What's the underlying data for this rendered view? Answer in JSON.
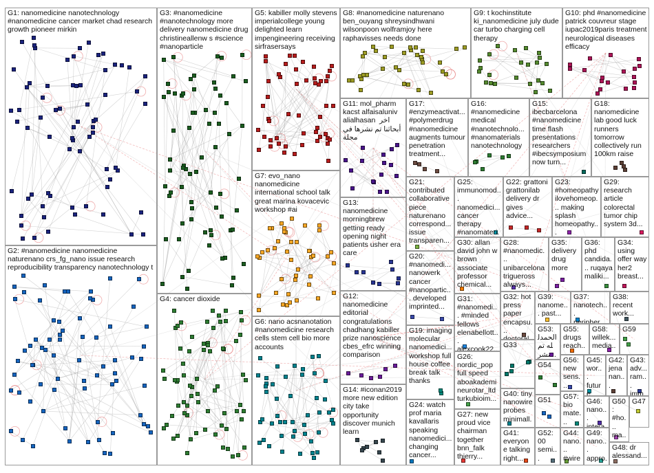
{
  "groups": [
    {
      "id": "G1",
      "label": "G1: nanomedicine nanotechnology #nanomedicine cancer market chad research growth pioneer mirkin",
      "color": "#1a237e"
    },
    {
      "id": "G2",
      "label": "G2: #nanomedicine nanomedicine naturenano crs_fg_nano issue research reproducibility transparency nanotechnology t",
      "color": "#1565c0"
    },
    {
      "id": "G3",
      "label": "G3: #nanomedicine #nanotechnology more delivery nanomedicine drug christineallenw s #science #nanoparticle",
      "color": "#1b5e20"
    },
    {
      "id": "G4",
      "label": "G4: cancer dioxide",
      "color": "#2e7d32"
    },
    {
      "id": "G5",
      "label": "G5: kabiller molly stevens imperialcollege young delighted learn impengineering receiving sirfrasersays",
      "color": "#b71c1c"
    },
    {
      "id": "G6",
      "label": "G6: nano acsnanotation #nanomedicine research cells stem cell bio more accounts",
      "color": "#00838f"
    },
    {
      "id": "G7",
      "label": "G7: evo_nano nanomedicine international school talk great marina kovacevic workshop #ai",
      "color": "#f9a825"
    },
    {
      "id": "G8",
      "label": "G8: #nanomedicine naturenano ben_ouyang shreysindhwani wilsonpoon wolframjoy here raphavisses needs done",
      "color": "#9e9d24"
    },
    {
      "id": "G9",
      "label": "G9: t kochinstitute ki_nanomedicine july dude car turbo charging cell therapy",
      "color": "#558b2f"
    },
    {
      "id": "G10",
      "label": "G10: phd #nanomedicine patrick couvreur stage iupac2019paris treatment neurological diseases efficacy",
      "color": "#ad1457"
    },
    {
      "id": "G11",
      "label": "G11: mol_pharm kacst alfaisaluniv alialhasan  اخر\nأبحاثنا تم نشرها في مجلة",
      "color": "#4a148c"
    },
    {
      "id": "G12",
      "label": "G12: nanomedicine editorial congratulations chadhang kabiller prize nanoscience cbes_efrc winning comparison",
      "color": "#6a1b9a"
    },
    {
      "id": "G13",
      "label": "G13: nanomedicine morningbrew getting ready opening night patients usher era care",
      "color": "#283593"
    },
    {
      "id": "G14",
      "label": "G14: #iconan2019 more new edition city take opportunity discover munich learn",
      "color": "#37474f"
    },
    {
      "id": "G15",
      "label": "G15: ibecbarcelona #nanomedicine time flash presentations researchers #ibecsymposium now turn...",
      "color": "#00695c"
    },
    {
      "id": "G16",
      "label": "G16: #nanomedicine medical #nanotechnolo... #nanomaterials nanotechnology",
      "color": "#2e7d32"
    },
    {
      "id": "G17",
      "label": "G17: #enzymeactivat... #polymerdrug #nanomedicine augments tumour penetration treatment...",
      "color": "#6d4c41"
    },
    {
      "id": "G18",
      "label": "G18: nanomedicine lab good luck runners tomorrow collectively run 100km raise",
      "color": "#5d4037"
    },
    {
      "id": "G19",
      "label": "G19: imaging molecular nanomedici... workshop full house coffee break talk thanks",
      "color": "#00897b"
    },
    {
      "id": "G20",
      "label": "G20: #nanomedi... nanowerk cancer #nanopartic... developed imprinted...",
      "color": "#3949ab"
    },
    {
      "id": "G21",
      "label": "G21: contributed collaborative piece naturenano correspond... issue transparen...",
      "color": "#7cb342"
    },
    {
      "id": "G22",
      "label": "G22: grattoni grattonilab delivery dr gives advice...",
      "color": "#c62828"
    },
    {
      "id": "G23",
      "label": "G23: #homeopathy ilovehomeop... making splash homeopathy...",
      "color": "#8e24aa"
    },
    {
      "id": "G24",
      "label": "G24: watch prof maria kavallaris speaking nanomedici... changing cancer...",
      "color": "#0277bd"
    },
    {
      "id": "G25",
      "label": "G25: immunomod... nanomedici... cancer therapy #nanomateri...",
      "color": "#00acc1"
    },
    {
      "id": "G26",
      "label": "G26: nordic_pop full speed aboakademi neurotar_ltd turkubioim...",
      "color": "#43a047"
    },
    {
      "id": "G27",
      "label": "G27: new proud vice chairman together bnn_falk thierry...",
      "color": "#e53935"
    },
    {
      "id": "G28",
      "label": "G28: #nanomedic... unibarcelona trigueross always...",
      "color": "#5e35b1"
    },
    {
      "id": "G29",
      "label": "G29: research article colorectal tumor chip system 3d...",
      "color": "#d81b60"
    },
    {
      "id": "G30",
      "label": "G30: allan david john w brown associate professor chemical...",
      "color": "#f57c00"
    },
    {
      "id": "G31",
      "label": "G31: #nanomedi... #minded fellows elenabellott... alexcook22...",
      "color": "#1e88e5"
    },
    {
      "id": "G32",
      "label": "G32: hot press paper encapsu... doctoral...",
      "color": "#6d4c41"
    },
    {
      "id": "G33",
      "label": "G33",
      "color": "#00796b"
    },
    {
      "id": "G34",
      "label": "G34: using offer way her2 breast...",
      "color": "#c2185b"
    },
    {
      "id": "G35",
      "label": "G35: delivery drug more",
      "color": "#7b1fa2"
    },
    {
      "id": "G36",
      "label": "G36: phd candida... ruqaya maliki...",
      "color": "#388e3c"
    },
    {
      "id": "G37",
      "label": "G37: nanotech... peripher...",
      "color": "#0288d1"
    },
    {
      "id": "G38",
      "label": "G38: recent work...",
      "color": "#455a64"
    },
    {
      "id": "G39",
      "label": "G39: nanome... past...",
      "color": "#fbc02d"
    },
    {
      "id": "G40",
      "label": "G40: tiny nanowire probes minimall...",
      "color": "#00838f"
    },
    {
      "id": "G41",
      "label": "G41: everyone talking right...",
      "color": "#e64a19"
    },
    {
      "id": "G42",
      "label": "G42: jena nan...",
      "color": "#5d4037"
    },
    {
      "id": "G43",
      "label": "G43: adv... ram... imm...",
      "color": "#303f9f"
    },
    {
      "id": "G44",
      "label": "G44: nano... #wires nan...",
      "color": "#689f38"
    },
    {
      "id": "G45",
      "label": "G45: wor... future nni...",
      "color": "#0097a7"
    },
    {
      "id": "G46",
      "label": "G46: nano... intera...",
      "color": "#512da8"
    },
    {
      "id": "G47",
      "label": "G47",
      "color": "#c0ca33"
    },
    {
      "id": "G48",
      "label": "G48: dr alessand...",
      "color": "#8d6e63"
    },
    {
      "id": "G49",
      "label": "G49: nano... appro...",
      "color": "#26a69a"
    },
    {
      "id": "G50",
      "label": "G50: #ho... ma... pati... con...",
      "color": "#ab47bc"
    },
    {
      "id": "G51",
      "label": "G51",
      "color": "#1565c0"
    },
    {
      "id": "G52",
      "label": "G52: 00 semi...",
      "color": "#546e7a"
    },
    {
      "id": "G53",
      "label": "G53: الحمدلله تم نشر...",
      "color": "#6a1b9a"
    },
    {
      "id": "G54",
      "label": "G54",
      "color": "#2e7d32"
    },
    {
      "id": "G55",
      "label": "G55: drugs reach...",
      "color": "#ef6c00"
    },
    {
      "id": "G56",
      "label": "G56: new sens... dete...",
      "color": "#3949ab"
    },
    {
      "id": "G57",
      "label": "G57: bio mate...",
      "color": "#00897b"
    },
    {
      "id": "G58",
      "label": "G58: willek... media...",
      "color": "#8e24aa"
    },
    {
      "id": "G59",
      "label": "G59",
      "color": "#43a047"
    }
  ]
}
